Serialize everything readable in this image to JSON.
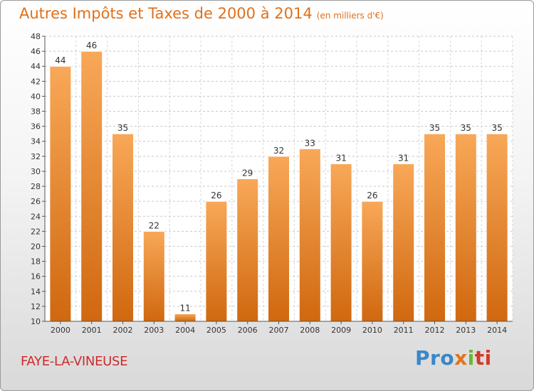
{
  "header": {
    "title": "Autres Impôts et Taxes de 2000 à 2014",
    "unit": "(en milliers d'€)"
  },
  "footer": {
    "commune": "FAYE-LA-VINEUSE",
    "logo": [
      "Pro",
      "x",
      "i",
      "ti"
    ]
  },
  "colors": {
    "bar_top": "#f8a858",
    "bar_bottom": "#d0680f",
    "title": "#e0701a",
    "commune": "#cf2a2a"
  },
  "chart_data": {
    "type": "bar",
    "title": "Autres Impôts et Taxes de 2000 à 2014",
    "subtitle": "(en milliers d'€)",
    "categories": [
      "2000",
      "2001",
      "2002",
      "2003",
      "2004",
      "2005",
      "2006",
      "2007",
      "2008",
      "2009",
      "2010",
      "2011",
      "2012",
      "2013",
      "2014"
    ],
    "values": [
      44,
      46,
      35,
      22,
      11,
      26,
      29,
      32,
      33,
      31,
      26,
      31,
      35,
      35,
      35
    ],
    "ylim": [
      10,
      48
    ],
    "yticks": [
      10,
      12,
      14,
      16,
      18,
      20,
      22,
      24,
      26,
      28,
      30,
      32,
      34,
      36,
      38,
      40,
      42,
      44,
      46,
      48
    ],
    "grid": true,
    "legend": "none"
  }
}
